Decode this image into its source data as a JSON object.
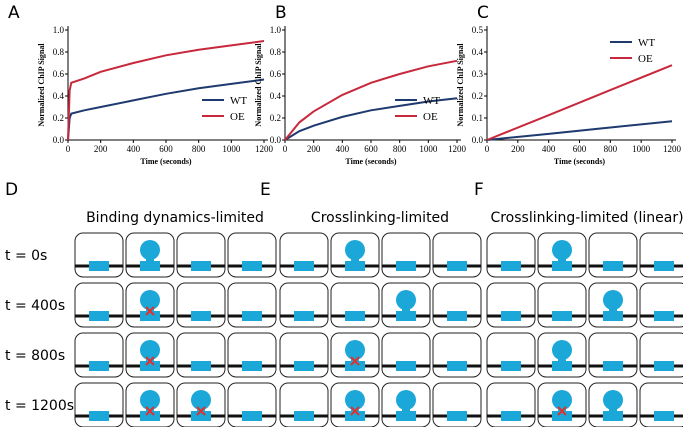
{
  "chart_data": [
    {
      "type": "line",
      "panel": "A",
      "xlabel": "Time (seconds)",
      "ylabel": "Normalized ChIP Signal",
      "xlim": [
        0,
        1200
      ],
      "ylim": [
        0,
        1.0
      ],
      "xticks": [
        0,
        200,
        400,
        600,
        800,
        1000,
        1200
      ],
      "yticks": [
        {
          "value": 0,
          "label": "0.0"
        },
        0.2,
        0.4,
        0.6,
        0.8,
        {
          "value": 1,
          "label": "1.0"
        }
      ],
      "legend": "lower right",
      "x": [
        0,
        10,
        20,
        100,
        200,
        400,
        600,
        800,
        1000,
        1200
      ],
      "series": [
        {
          "name": "WT",
          "color": "#1f3a6e",
          "values": [
            0,
            0.2,
            0.24,
            0.27,
            0.3,
            0.36,
            0.42,
            0.47,
            0.51,
            0.55
          ]
        },
        {
          "name": "OE",
          "color": "#c8283c",
          "values": [
            0,
            0.45,
            0.52,
            0.56,
            0.62,
            0.7,
            0.77,
            0.82,
            0.86,
            0.9
          ]
        }
      ]
    },
    {
      "type": "line",
      "panel": "B",
      "xlabel": "Time (seconds)",
      "ylabel": "Normalized ChIP Signal",
      "xlim": [
        0,
        1200
      ],
      "ylim": [
        0,
        1.0
      ],
      "xticks": [
        0,
        200,
        400,
        600,
        800,
        1000,
        1200
      ],
      "yticks": [
        {
          "value": 0,
          "label": "0.0"
        },
        0.2,
        0.4,
        0.6,
        0.8,
        {
          "value": 1,
          "label": "1.0"
        }
      ],
      "legend": "lower right",
      "x": [
        0,
        100,
        200,
        400,
        600,
        800,
        1000,
        1200
      ],
      "series": [
        {
          "name": "WT",
          "color": "#1f3a6e",
          "values": [
            0,
            0.08,
            0.13,
            0.21,
            0.27,
            0.31,
            0.35,
            0.38
          ]
        },
        {
          "name": "OE",
          "color": "#c8283c",
          "values": [
            0,
            0.16,
            0.26,
            0.41,
            0.52,
            0.6,
            0.67,
            0.72
          ]
        }
      ]
    },
    {
      "type": "line",
      "panel": "C",
      "xlabel": "Time (seconds)",
      "ylabel": "Normalized ChIP Signal",
      "xlim": [
        0,
        1200
      ],
      "ylim": [
        0,
        0.5
      ],
      "xticks": [
        0,
        200,
        400,
        600,
        800,
        1000,
        1200
      ],
      "yticks": [
        {
          "value": 0,
          "label": "0.0"
        },
        0.1,
        0.2,
        0.3,
        0.4,
        0.5
      ],
      "legend": "upper right",
      "x": [
        0,
        400,
        800,
        1200
      ],
      "series": [
        {
          "name": "WT",
          "color": "#1f3a6e",
          "values": [
            0,
            0.028,
            0.057,
            0.085
          ]
        },
        {
          "name": "OE",
          "color": "#c8283c",
          "values": [
            0,
            0.113,
            0.227,
            0.34
          ]
        }
      ]
    }
  ],
  "diagram": {
    "row_labels": [
      "t = 0s",
      "t = 400s",
      "t = 800s",
      "t = 1200s"
    ],
    "panels": [
      {
        "label": "D",
        "title": "Binding dynamics-limited"
      },
      {
        "label": "E",
        "title": "Crosslinking-limited"
      },
      {
        "label": "F",
        "title": "Crosslinking-limited (linear)"
      }
    ]
  }
}
